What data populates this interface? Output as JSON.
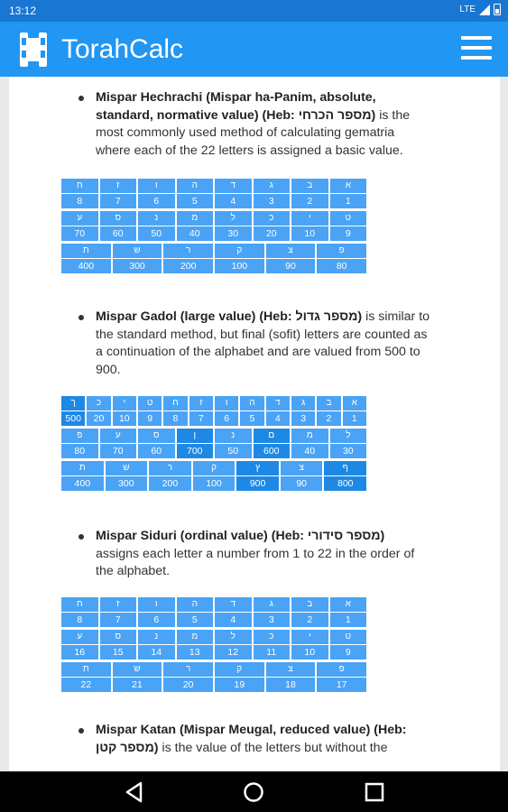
{
  "status": {
    "time": "13:12",
    "network": "LTE"
  },
  "app": {
    "title": "TorahCalc",
    "logo_icon": "torah-scroll-icon",
    "menu_icon": "hamburger-menu-icon",
    "accent": "#2196f3",
    "status_color": "#1976d2"
  },
  "sections": [
    {
      "id": "hechrachi",
      "name": "Mispar Hechrachi (Mispar ha-Panim, absolute, standard, normative value) (Heb: מספר הכרחי)",
      "desc": "is the most commonly used method of calculating gematria where each of the 22 letters is assigned a basic value.",
      "rows": [
        [
          {
            "l": "ח",
            "v": "8"
          },
          {
            "l": "ז",
            "v": "7"
          },
          {
            "l": "ו",
            "v": "6"
          },
          {
            "l": "ה",
            "v": "5"
          },
          {
            "l": "ד",
            "v": "4"
          },
          {
            "l": "ג",
            "v": "3"
          },
          {
            "l": "ב",
            "v": "2"
          },
          {
            "l": "א",
            "v": "1"
          }
        ],
        [
          {
            "l": "ע",
            "v": "70"
          },
          {
            "l": "ס",
            "v": "60"
          },
          {
            "l": "נ",
            "v": "50"
          },
          {
            "l": "מ",
            "v": "40"
          },
          {
            "l": "ל",
            "v": "30"
          },
          {
            "l": "כ",
            "v": "20"
          },
          {
            "l": "י",
            "v": "10"
          },
          {
            "l": "ט",
            "v": "9"
          }
        ],
        [
          {
            "l": "ת",
            "v": "400"
          },
          {
            "l": "ש",
            "v": "300"
          },
          {
            "l": "ר",
            "v": "200"
          },
          {
            "l": "ק",
            "v": "100"
          },
          {
            "l": "צ",
            "v": "90"
          },
          {
            "l": "פ",
            "v": "80"
          }
        ]
      ]
    },
    {
      "id": "gadol",
      "name": "Mispar Gadol (large value) (Heb: מספר גדול)",
      "desc": "is similar to the standard method, but final (sofit) letters are counted as a continuation of the alphabet and are valued from 500 to 900.",
      "rows": [
        [
          {
            "l": "ך",
            "v": "500",
            "hl": true
          },
          {
            "l": "כ",
            "v": "20"
          },
          {
            "l": "י",
            "v": "10"
          },
          {
            "l": "ט",
            "v": "9"
          },
          {
            "l": "ח",
            "v": "8"
          },
          {
            "l": "ז",
            "v": "7"
          },
          {
            "l": "ו",
            "v": "6"
          },
          {
            "l": "ה",
            "v": "5"
          },
          {
            "l": "ד",
            "v": "4"
          },
          {
            "l": "ג",
            "v": "3"
          },
          {
            "l": "ב",
            "v": "2"
          },
          {
            "l": "א",
            "v": "1"
          }
        ],
        [
          {
            "l": "פ",
            "v": "80"
          },
          {
            "l": "ע",
            "v": "70"
          },
          {
            "l": "ס",
            "v": "60"
          },
          {
            "l": "ן",
            "v": "700",
            "hl": true
          },
          {
            "l": "נ",
            "v": "50"
          },
          {
            "l": "ם",
            "v": "600",
            "hl": true
          },
          {
            "l": "מ",
            "v": "40"
          },
          {
            "l": "ל",
            "v": "30"
          }
        ],
        [
          {
            "l": "ת",
            "v": "400"
          },
          {
            "l": "ש",
            "v": "300"
          },
          {
            "l": "ר",
            "v": "200"
          },
          {
            "l": "ק",
            "v": "100"
          },
          {
            "l": "ץ",
            "v": "900",
            "hl": true
          },
          {
            "l": "צ",
            "v": "90"
          },
          {
            "l": "ף",
            "v": "800",
            "hl": true
          }
        ]
      ]
    },
    {
      "id": "siduri",
      "name": "Mispar Siduri (ordinal value) (Heb: מספר סידורי)",
      "desc": "assigns each letter a number from 1 to 22 in the order of the alphabet.",
      "rows": [
        [
          {
            "l": "ח",
            "v": "8"
          },
          {
            "l": "ז",
            "v": "7"
          },
          {
            "l": "ו",
            "v": "6"
          },
          {
            "l": "ה",
            "v": "5"
          },
          {
            "l": "ד",
            "v": "4"
          },
          {
            "l": "ג",
            "v": "3"
          },
          {
            "l": "ב",
            "v": "2"
          },
          {
            "l": "א",
            "v": "1"
          }
        ],
        [
          {
            "l": "ע",
            "v": "16"
          },
          {
            "l": "ס",
            "v": "15"
          },
          {
            "l": "נ",
            "v": "14"
          },
          {
            "l": "מ",
            "v": "13"
          },
          {
            "l": "ל",
            "v": "12"
          },
          {
            "l": "כ",
            "v": "11"
          },
          {
            "l": "י",
            "v": "10"
          },
          {
            "l": "ט",
            "v": "9"
          }
        ],
        [
          {
            "l": "ת",
            "v": "22"
          },
          {
            "l": "ש",
            "v": "21"
          },
          {
            "l": "ר",
            "v": "20"
          },
          {
            "l": "ק",
            "v": "19"
          },
          {
            "l": "צ",
            "v": "18"
          },
          {
            "l": "פ",
            "v": "17"
          }
        ]
      ]
    },
    {
      "id": "katan",
      "name": "Mispar Katan (Mispar Meugal, reduced value) (Heb: מספר קטן)",
      "desc": "is the value of the letters but without the",
      "rows": []
    }
  ],
  "nav": {
    "back_icon": "back-triangle-icon",
    "home_icon": "home-circle-icon",
    "recent_icon": "recent-square-icon"
  }
}
